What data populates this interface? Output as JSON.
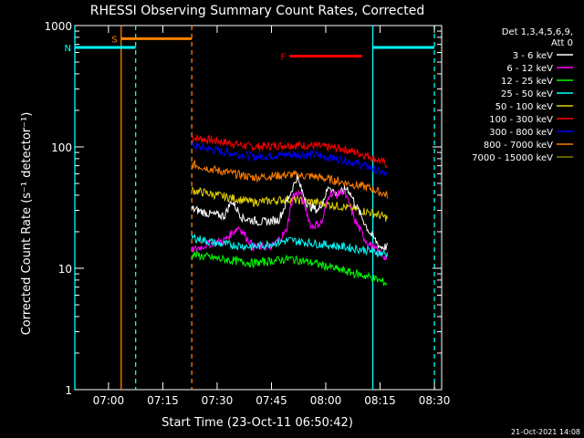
{
  "colors": {
    "background": "#000000",
    "axes": "#ffffff",
    "cyan": "#00ffff",
    "orange": "#ff8000",
    "red": "#ff0000"
  },
  "chart_data": {
    "type": "line",
    "title": "RHESSI Observing Summary Count Rates, Corrected",
    "xlabel": "Start Time (23-Oct-11 06:50:42)",
    "ylabel": "Corrected Count Rate (s⁻¹ detector⁻¹)",
    "yscale": "log",
    "ylim": [
      1,
      1000
    ],
    "xlim": [
      "06:50:42",
      "08:32:00"
    ],
    "x_ticks": [
      "07:00",
      "07:15",
      "07:30",
      "07:45",
      "08:00",
      "08:15",
      "08:30"
    ],
    "y_ticks": [
      "1",
      "10",
      "100",
      "1000"
    ],
    "timestamp": "21-Oct-2021 14:08",
    "legend": {
      "placement": "top-right",
      "header": [
        "Det 1,3,4,5,6,9,",
        "Att 0"
      ],
      "entries": [
        {
          "label": "3 - 6 keV",
          "color": "#ffffff"
        },
        {
          "label": "6 - 12 keV",
          "color": "#ff00ff"
        },
        {
          "label": "12 - 25 keV",
          "color": "#00ff00"
        },
        {
          "label": "25 - 50 keV",
          "color": "#00ffff"
        },
        {
          "label": "50 - 100 keV",
          "color": "#e0d000"
        },
        {
          "label": "100 - 300 keV",
          "color": "#ff0000"
        },
        {
          "label": "300 - 800 keV",
          "color": "#0000ff"
        },
        {
          "label": "800 - 7000 keV",
          "color": "#ff8000"
        },
        {
          "label": "7000 - 15000 keV",
          "color": "#808000"
        }
      ]
    },
    "flags": [
      {
        "label": "S",
        "color": "#ff8000",
        "start": "07:03:30",
        "end": "07:23:00",
        "y": 780
      },
      {
        "label": "N",
        "color": "#00ffff",
        "start": "06:50:42",
        "end": "07:07:30",
        "y": 660
      },
      {
        "label": "F",
        "color": "#ff0000",
        "start": "07:50:00",
        "end": "08:10:00",
        "y": 560
      },
      {
        "label": "",
        "color": "#00ffff",
        "start": "08:13:00",
        "end": "08:30:00",
        "y": 660
      }
    ],
    "vlines": [
      {
        "time": "06:50:42",
        "color": "#00ffff",
        "style": "solid"
      },
      {
        "time": "07:03:30",
        "color": "#ff8000",
        "style": "solid"
      },
      {
        "time": "07:07:30",
        "color": "#00ffff",
        "style": "dashed"
      },
      {
        "time": "07:23:00",
        "color": "#ff8000",
        "style": "dashed"
      },
      {
        "time": "08:13:00",
        "color": "#00ffff",
        "style": "solid"
      },
      {
        "time": "08:30:00",
        "color": "#00ffff",
        "style": "dashed"
      }
    ],
    "series": [
      {
        "color": "#ff0000",
        "x": [
          "07:23",
          "07:30",
          "07:40",
          "07:50",
          "07:57",
          "08:05",
          "08:12",
          "08:17"
        ],
        "values": [
          120,
          112,
          100,
          104,
          102,
          96,
          84,
          72
        ]
      },
      {
        "color": "#0000ff",
        "x": [
          "07:23",
          "07:30",
          "07:40",
          "07:50",
          "07:57",
          "08:05",
          "08:12",
          "08:17"
        ],
        "values": [
          103,
          93,
          83,
          87,
          86,
          78,
          68,
          58
        ]
      },
      {
        "color": "#ff8000",
        "x": [
          "07:23",
          "07:30",
          "07:40",
          "07:50",
          "07:57",
          "08:05",
          "08:12",
          "08:17"
        ],
        "values": [
          72,
          64,
          56,
          59,
          57,
          51,
          46,
          40
        ]
      },
      {
        "color": "#e0d000",
        "x": [
          "07:23",
          "07:30",
          "07:40",
          "07:50",
          "07:57",
          "08:05",
          "08:12",
          "08:17"
        ],
        "values": [
          44,
          40,
          35,
          37,
          35,
          32,
          29,
          26
        ]
      },
      {
        "color": "#ffffff",
        "x": [
          "07:23",
          "07:28",
          "07:32",
          "07:34",
          "07:37",
          "07:42",
          "07:47",
          "07:50",
          "07:52",
          "07:55",
          "07:58",
          "08:01",
          "08:03",
          "08:06",
          "08:09",
          "08:12",
          "08:15",
          "08:17"
        ],
        "values": [
          31,
          28,
          27,
          36,
          26,
          24,
          25,
          40,
          56,
          33,
          30,
          48,
          40,
          46,
          30,
          20,
          15,
          15
        ]
      },
      {
        "color": "#ff00ff",
        "x": [
          "07:23",
          "07:28",
          "07:32",
          "07:36",
          "07:40",
          "07:45",
          "07:49",
          "07:51",
          "07:53",
          "07:56",
          "07:59",
          "08:01",
          "08:03",
          "08:05",
          "08:08",
          "08:11",
          "08:14",
          "08:17"
        ],
        "values": [
          14,
          16,
          17,
          22,
          15,
          15,
          20,
          40,
          42,
          22,
          24,
          42,
          40,
          44,
          25,
          17,
          14,
          12
        ]
      },
      {
        "color": "#00ffff",
        "x": [
          "07:23",
          "07:30",
          "07:40",
          "07:50",
          "07:57",
          "08:05",
          "08:12",
          "08:17"
        ],
        "values": [
          18,
          16,
          15,
          17,
          16,
          15,
          14,
          13
        ]
      },
      {
        "color": "#00ff00",
        "x": [
          "07:23",
          "07:30",
          "07:40",
          "07:50",
          "07:57",
          "08:05",
          "08:12",
          "08:17"
        ],
        "values": [
          13,
          12,
          11,
          12,
          11,
          9.5,
          8.5,
          7.5
        ]
      }
    ]
  }
}
